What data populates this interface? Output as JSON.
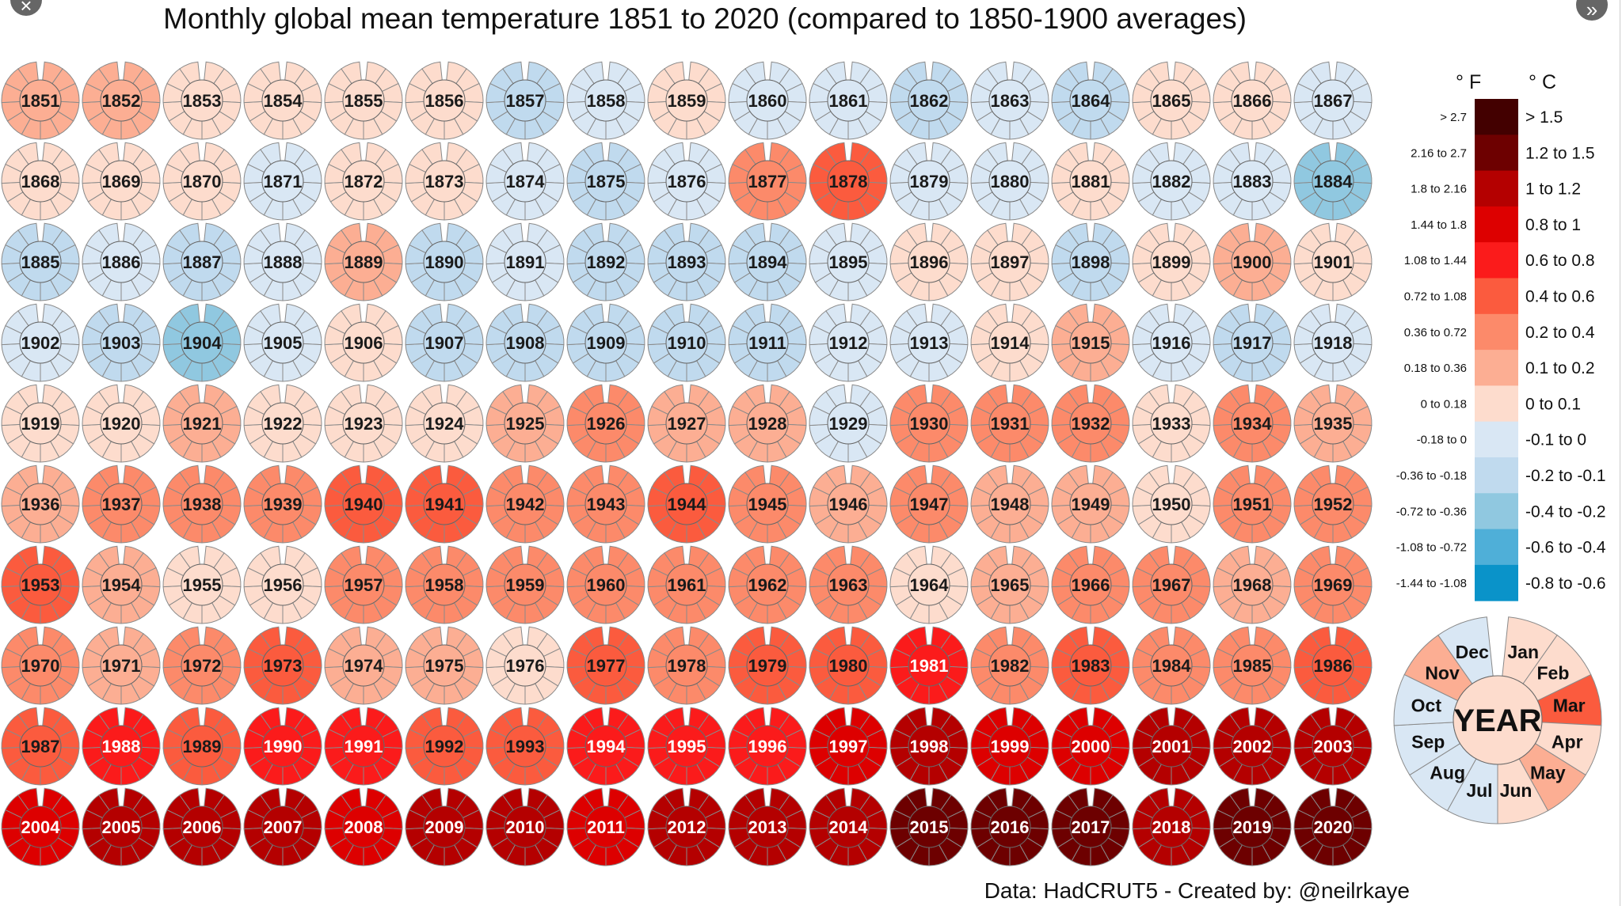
{
  "nav": {
    "close_icon": "×",
    "next_icon": "»"
  },
  "chart_data": {
    "type": "heatmap",
    "subtype": "radial-month-wheels",
    "title": "Monthly global mean temperature 1851 to 2020 (compared to 1850-1900 averages)",
    "footer": "Data: HadCRUT5  -   Created by: @neilrkaye",
    "units": {
      "f": "° F",
      "c": "° C"
    },
    "legend": [
      {
        "f": "> 2.7",
        "c": "> 1.5",
        "color": "#430000"
      },
      {
        "f": "2.16 to 2.7",
        "c": "1.2 to 1.5",
        "color": "#6d0000"
      },
      {
        "f": "1.8 to 2.16",
        "c": "1 to 1.2",
        "color": "#b40000"
      },
      {
        "f": "1.44 to 1.8",
        "c": "0.8 to 1",
        "color": "#dd0000"
      },
      {
        "f": "1.08 to 1.44",
        "c": "0.6 to 0.8",
        "color": "#fb1b1b"
      },
      {
        "f": "0.72 to 1.08",
        "c": "0.4 to 0.6",
        "color": "#fb5b3e"
      },
      {
        "f": "0.36 to 0.72",
        "c": "0.2 to 0.4",
        "color": "#fc8a6a"
      },
      {
        "f": "0.18 to 0.36",
        "c": "0.1 to 0.2",
        "color": "#fcae93"
      },
      {
        "f": "0 to 0.18",
        "c": "0 to 0.1",
        "color": "#fddccd"
      },
      {
        "f": "-0.18 to 0",
        "c": "-0.1 to 0",
        "color": "#d9e7f4"
      },
      {
        "f": "-0.36 to -0.18",
        "c": "-0.2 to -0.1",
        "color": "#c0daee"
      },
      {
        "f": "-0.72 to -0.36",
        "c": "-0.4 to -0.2",
        "color": "#90c8e0"
      },
      {
        "f": "-1.08 to -0.72",
        "c": "-0.6 to -0.4",
        "color": "#4fafd8"
      },
      {
        "f": "-1.44 to -1.08",
        "c": "-0.8 to -0.6",
        "color": "#0a93c9"
      }
    ],
    "key_wheel": {
      "center": "YEAR",
      "months": [
        "Jan",
        "Feb",
        "Mar",
        "Apr",
        "May",
        "Jun",
        "Jul",
        "Aug",
        "Sep",
        "Oct",
        "Nov",
        "Dec"
      ],
      "values_c": [
        0.05,
        0.05,
        0.5,
        0.05,
        0.15,
        0.05,
        -0.05,
        -0.05,
        -0.05,
        -0.05,
        0.15,
        -0.05
      ],
      "center_value_c": 0.05
    },
    "first_year": 1851,
    "columns": 17,
    "annual_anomaly_c": [
      0.15,
      0.15,
      0.05,
      0.05,
      0.05,
      0.05,
      -0.15,
      -0.05,
      0.05,
      -0.05,
      -0.05,
      -0.15,
      -0.05,
      -0.15,
      0.05,
      0.05,
      -0.05,
      0.05,
      0.05,
      0.05,
      -0.05,
      0.05,
      0.05,
      -0.05,
      -0.15,
      -0.05,
      0.3,
      0.5,
      -0.05,
      -0.05,
      0.05,
      -0.05,
      -0.05,
      -0.3,
      -0.15,
      -0.05,
      -0.15,
      -0.05,
      0.15,
      -0.15,
      -0.05,
      -0.15,
      -0.15,
      -0.15,
      -0.05,
      0.05,
      0.05,
      -0.15,
      0.05,
      0.15,
      0.05,
      -0.05,
      -0.15,
      -0.3,
      -0.05,
      0.05,
      -0.15,
      -0.15,
      -0.15,
      -0.15,
      -0.15,
      -0.05,
      -0.05,
      0.05,
      0.15,
      -0.05,
      -0.15,
      -0.05,
      0.05,
      0.05,
      0.15,
      0.05,
      0.05,
      0.05,
      0.15,
      0.3,
      0.15,
      0.15,
      -0.05,
      0.3,
      0.3,
      0.3,
      0.05,
      0.3,
      0.15,
      0.15,
      0.3,
      0.3,
      0.3,
      0.5,
      0.5,
      0.3,
      0.3,
      0.5,
      0.3,
      0.15,
      0.3,
      0.15,
      0.15,
      0.05,
      0.3,
      0.3,
      0.5,
      0.15,
      0.05,
      0.05,
      0.3,
      0.3,
      0.3,
      0.3,
      0.3,
      0.3,
      0.3,
      0.05,
      0.15,
      0.3,
      0.3,
      0.15,
      0.3,
      0.3,
      0.15,
      0.3,
      0.5,
      0.15,
      0.15,
      0.05,
      0.5,
      0.3,
      0.5,
      0.5,
      0.7,
      0.3,
      0.5,
      0.3,
      0.3,
      0.5,
      0.5,
      0.7,
      0.5,
      0.7,
      0.7,
      0.5,
      0.5,
      0.7,
      0.7,
      0.7,
      0.9,
      1.1,
      0.9,
      0.9,
      1.1,
      1.1,
      1.1,
      0.9,
      1.1,
      1.1,
      1.1,
      0.9,
      1.1,
      1.1,
      0.9,
      1.1,
      1.1,
      1.1,
      1.3,
      1.3,
      1.3,
      1.1,
      1.3,
      1.3
    ]
  }
}
